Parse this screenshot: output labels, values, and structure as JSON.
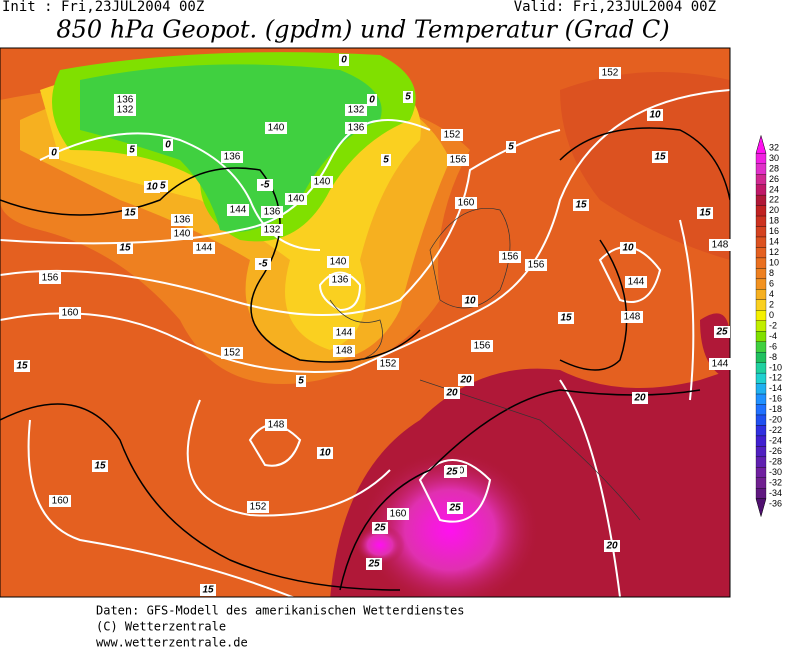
{
  "header": {
    "init": "Init : Fri,23JUL2004 00Z",
    "valid": "Valid: Fri,23JUL2004 00Z",
    "title": "850 hPa Geopot. (gpdm) und Temperatur (Grad C)"
  },
  "colorbar": {
    "levels": [
      32,
      30,
      28,
      26,
      24,
      22,
      20,
      18,
      16,
      14,
      12,
      10,
      8,
      6,
      4,
      2,
      0,
      -2,
      -4,
      -6,
      -8,
      -10,
      -12,
      -14,
      -16,
      -18,
      -20,
      -22,
      -24,
      -26,
      -28,
      -30,
      -32,
      -34,
      -36
    ],
    "colors": [
      "#ff10f0",
      "#f020e0",
      "#e030c8",
      "#d02890",
      "#c01868",
      "#b01838",
      "#c02222",
      "#cc3220",
      "#d44220",
      "#dc5220",
      "#e46020",
      "#ea7020",
      "#ee8020",
      "#f29220",
      "#f6b020",
      "#fad020",
      "#f4f000",
      "#c0ee00",
      "#80e000",
      "#40d040",
      "#20c060",
      "#20d0a0",
      "#20d0d0",
      "#20b0f0",
      "#2090ff",
      "#2070ff",
      "#2050f0",
      "#3030e0",
      "#4020d0",
      "#5020c0",
      "#6020b0",
      "#7020a0",
      "#702090",
      "#601880",
      "#501070"
    ]
  },
  "map": {
    "geopotential_labels": [
      "136",
      "132",
      "140",
      "136",
      "140",
      "140",
      "144",
      "136",
      "132",
      "136",
      "140",
      "144",
      "140",
      "136",
      "144",
      "148",
      "152",
      "152",
      "156",
      "148",
      "152",
      "160",
      "160",
      "156",
      "152",
      "152",
      "156",
      "160",
      "156",
      "156",
      "144",
      "148",
      "148",
      "144",
      "160",
      "160",
      "132",
      "136"
    ],
    "temperature_labels": [
      "15",
      "15",
      "15",
      "15",
      "15",
      "10",
      "5",
      "0",
      "0",
      "-5",
      "-5",
      "10",
      "15",
      "15",
      "15",
      "10",
      "15",
      "10",
      "10",
      "20",
      "20",
      "20",
      "25",
      "25",
      "25",
      "25",
      "25",
      "20",
      "15",
      "5",
      "5",
      "5",
      "0",
      "0",
      "5"
    ]
  },
  "footer": [
    "Daten: GFS-Modell des amerikanischen Wetterdienstes",
    "(C) Wetterzentrale",
    "www.wetterzentrale.de"
  ]
}
